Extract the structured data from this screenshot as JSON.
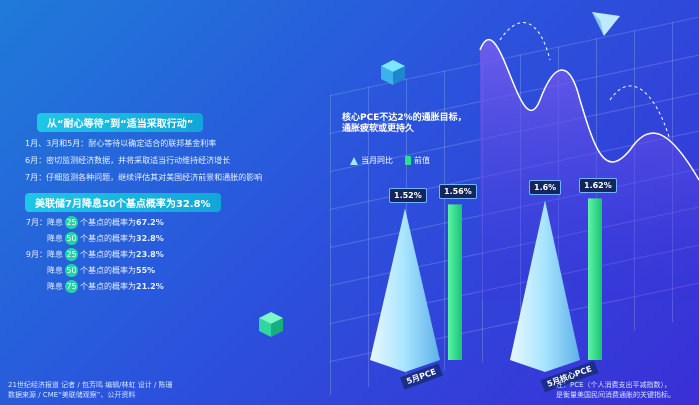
{
  "section1": {
    "title": "从“耐心等待”到“适当采取行动”",
    "notes": [
      "1月、3月和5月：耐心等待以确定适合的联邦基金利率",
      "6月：密切监测经济数据，并将采取适当行动维持经济增长",
      "7月：仔细监测各种问题，继续评估其对美国经济前景和通胀的影响"
    ]
  },
  "section2": {
    "title": "美联储7月降息50个基点概率为32.8%",
    "rows": [
      {
        "month": "7月：",
        "pre": "降息",
        "num": "25",
        "post": "个基点的概率为",
        "pct": "67.2%"
      },
      {
        "month": "",
        "pre": "降息",
        "num": "50",
        "post": "个基点的概率为",
        "pct": "32.8%"
      },
      {
        "month": "9月：",
        "pre": "降息",
        "num": "25",
        "post": "个基点的概率为",
        "pct": "23.8%"
      },
      {
        "month": "",
        "pre": "降息",
        "num": "50",
        "post": "个基点的概率为",
        "pct": "55%"
      },
      {
        "month": "",
        "pre": "降息",
        "num": "75",
        "post": "个基点的概率为",
        "pct": "21.2%"
      }
    ]
  },
  "chart": {
    "title_a": "核心PCE不达2%的通胀目标，",
    "title_b": "通胀疲软或更持久",
    "legend_actual": "当月同比",
    "legend_prev": "前值",
    "colors": {
      "actual": "#a7e4ff",
      "prev": "#28e38a",
      "badge": "#13265e"
    }
  },
  "chart_data": {
    "type": "bar",
    "categories": [
      "5月PCE",
      "5月核心PCE"
    ],
    "series": [
      {
        "name": "当月同比",
        "values": [
          1.52,
          1.6
        ],
        "labels": [
          "1.52%",
          "1.6%"
        ]
      },
      {
        "name": "前值",
        "values": [
          1.56,
          1.62
        ],
        "labels": [
          "1.56%",
          "1.62%"
        ]
      }
    ],
    "title": "核心PCE不达2%的通胀目标，通胀疲软或更持久"
  },
  "credits": {
    "line1": "21世纪经济报道  记者 / 包芳鸣  编辑/林虹  设计 / 陈珊",
    "line2": "数据来源 / CME“美联储观察”、公开资料"
  },
  "footnote": {
    "line1": "注：PCE（个人消费支出平减指数），",
    "line2": "是衡量美国民间消费通胀的关键指标。"
  }
}
